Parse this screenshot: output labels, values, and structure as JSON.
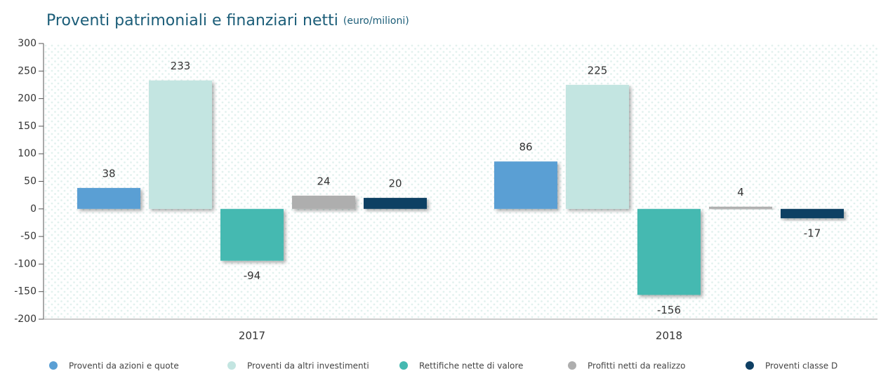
{
  "chart_data": {
    "type": "bar",
    "title": "Proventi patrimoniali e finanziari netti",
    "subtitle": "(euro/milioni)",
    "categories": [
      "2017",
      "2018"
    ],
    "series": [
      {
        "name": "Proventi da azioni e quote",
        "color": "#5a9fd4",
        "values": [
          38,
          86
        ]
      },
      {
        "name": "Proventi da altri investimenti",
        "color": "#c3e5e1",
        "values": [
          233,
          225
        ]
      },
      {
        "name": "Rettifiche nette di valore",
        "color": "#45b9b1",
        "values": [
          -94,
          -156
        ]
      },
      {
        "name": "Profitti netti da realizzo",
        "color": "#aeaeae",
        "values": [
          24,
          4
        ]
      },
      {
        "name": "Proventi classe D",
        "color": "#0e3f63",
        "values": [
          20,
          -17
        ]
      }
    ],
    "ylim": [
      -200,
      300
    ],
    "yticks": [
      -200,
      -150,
      -100,
      -50,
      0,
      50,
      100,
      150,
      200,
      250,
      300
    ]
  }
}
